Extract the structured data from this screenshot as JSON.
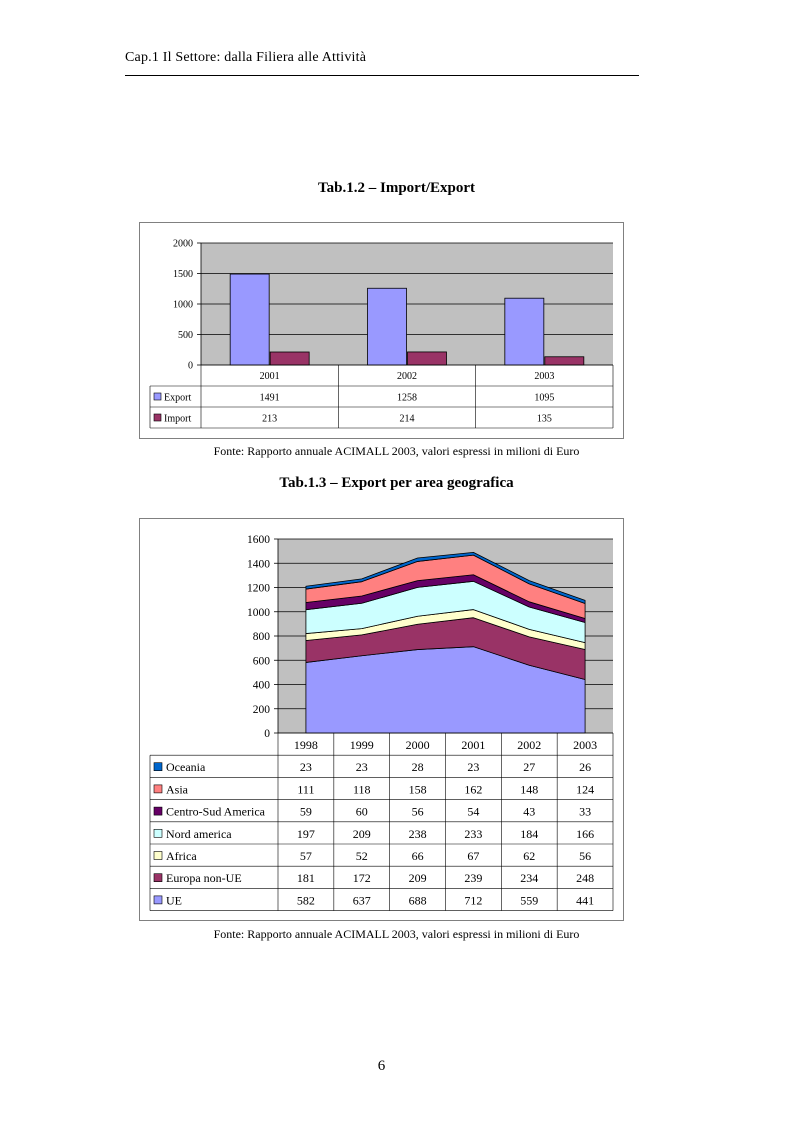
{
  "header": {
    "running_title": "Cap.1 Il Settore: dalla Filiera alle Attività"
  },
  "page_number": "6",
  "tables": [
    {
      "caption": "Tab.1.2 – Import/Export",
      "source": "Fonte: Rapporto annuale ACIMALL 2003, valori espressi in milioni di Euro"
    },
    {
      "caption": "Tab.1.3 – Export per area geografica",
      "source": "Fonte: Rapporto annuale ACIMALL 2003, valori espressi in milioni di Euro"
    }
  ],
  "chart_data": [
    {
      "type": "bar",
      "categories": [
        "2001",
        "2002",
        "2003"
      ],
      "series": [
        {
          "name": "Export",
          "values": [
            1491,
            1258,
            1095
          ],
          "color": "#9999ff"
        },
        {
          "name": "Import",
          "values": [
            213,
            214,
            135
          ],
          "color": "#993366"
        }
      ],
      "ylim": [
        0,
        2000
      ],
      "yticks": [
        "0",
        "500",
        "1000",
        "1500",
        "2000"
      ],
      "grid": true,
      "plot_background": "#c0c0c0",
      "data_table": true
    },
    {
      "type": "area",
      "stacked": true,
      "categories": [
        "1998",
        "1999",
        "2000",
        "2001",
        "2002",
        "2003"
      ],
      "series": [
        {
          "name": "UE",
          "values": [
            582,
            637,
            688,
            712,
            559,
            441
          ],
          "color": "#9999ff"
        },
        {
          "name": "Europa non-UE",
          "values": [
            181,
            172,
            209,
            239,
            234,
            248
          ],
          "color": "#993366"
        },
        {
          "name": "Africa",
          "values": [
            57,
            52,
            66,
            67,
            62,
            56
          ],
          "color": "#ffffcc"
        },
        {
          "name": "Nord america",
          "values": [
            197,
            209,
            238,
            233,
            184,
            166
          ],
          "color": "#ccffff"
        },
        {
          "name": "Centro-Sud America",
          "values": [
            59,
            60,
            56,
            54,
            43,
            33
          ],
          "color": "#660066"
        },
        {
          "name": "Asia",
          "values": [
            111,
            118,
            158,
            162,
            148,
            124
          ],
          "color": "#ff8080"
        },
        {
          "name": "Oceania",
          "values": [
            23,
            23,
            28,
            23,
            27,
            26
          ],
          "color": "#0066cc"
        }
      ],
      "ylim": [
        0,
        1600
      ],
      "yticks": [
        "0",
        "200",
        "400",
        "600",
        "800",
        "1000",
        "1200",
        "1400",
        "1600"
      ],
      "grid": true,
      "plot_background": "#c0c0c0",
      "data_table": true
    }
  ]
}
